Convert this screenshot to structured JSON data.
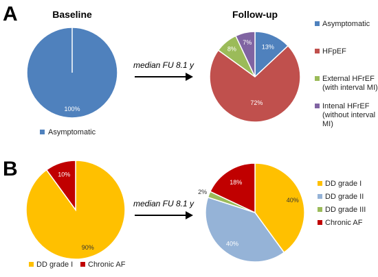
{
  "chart_data": [
    {
      "type": "pie",
      "panel": "A",
      "title": "Baseline",
      "slices": [
        {
          "label": "Asymptomatic",
          "value": 100,
          "display": "100%",
          "color": "#4f81bd",
          "label_color": "#ffffff"
        }
      ],
      "legend": [
        "Asymptomatic"
      ],
      "legend_position": "bottom"
    },
    {
      "type": "pie",
      "panel": "A",
      "title": "Follow-up",
      "slices": [
        {
          "label": "Asymptomatic",
          "value": 13,
          "display": "13%",
          "color": "#4f81bd",
          "label_color": "#ffffff"
        },
        {
          "label": "HFpEF",
          "value": 72,
          "display": "72%",
          "color": "#c0504d",
          "label_color": "#ffffff"
        },
        {
          "label": "External HFrEF (with interval MI)",
          "value": 8,
          "display": "8%",
          "color": "#9bbb59",
          "label_color": "#ffffff"
        },
        {
          "label": "Intenal HFrEF (without interval MI)",
          "value": 7,
          "display": "7%",
          "color": "#8064a2",
          "label_color": "#ffffff"
        }
      ],
      "legend": [
        "Asymptomatic",
        "HFpEF",
        "External HFrEF (with interval MI)",
        "Intenal HFrEF (without interval MI)"
      ],
      "legend_position": "right"
    },
    {
      "type": "pie",
      "panel": "B",
      "title": "",
      "slices": [
        {
          "label": "DD grade I",
          "value": 90,
          "display": "90%",
          "color": "#ffc000",
          "label_color": "#333333"
        },
        {
          "label": "Chronic AF",
          "value": 10,
          "display": "10%",
          "color": "#c00000",
          "label_color": "#ffffff"
        }
      ],
      "legend": [
        "DD grade I",
        "Chronic AF"
      ],
      "legend_position": "bottom"
    },
    {
      "type": "pie",
      "panel": "B",
      "title": "",
      "slices": [
        {
          "label": "DD grade I",
          "value": 40,
          "display": "40%",
          "color": "#ffc000",
          "label_color": "#333333"
        },
        {
          "label": "DD grade II",
          "value": 40,
          "display": "40%",
          "color": "#95b3d7",
          "label_color": "#ffffff"
        },
        {
          "label": "DD grade III",
          "value": 2,
          "display": "2%",
          "color": "#9bbb59",
          "label_color": "#333333"
        },
        {
          "label": "Chronic AF",
          "value": 18,
          "display": "18%",
          "color": "#c00000",
          "label_color": "#ffffff"
        }
      ],
      "legend": [
        "DD grade I",
        "DD grade II",
        "DD grade III",
        "Chronic AF"
      ],
      "legend_position": "right"
    }
  ],
  "panels": [
    "A",
    "B"
  ],
  "arrows": [
    "median FU 8.1 y",
    "median FU 8.1 y"
  ]
}
